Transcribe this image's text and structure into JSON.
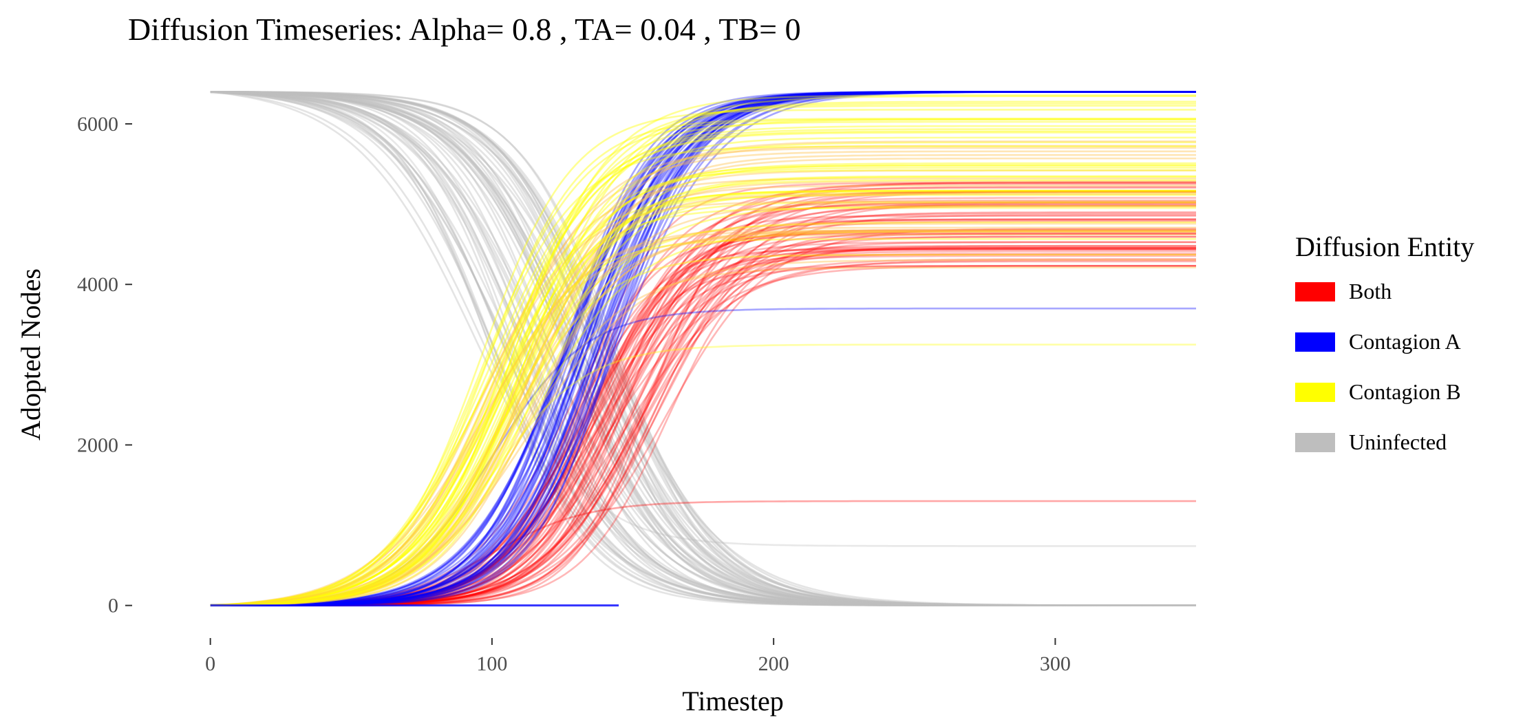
{
  "chart_data": {
    "type": "line",
    "title": "Diffusion Timeseries: Alpha= 0.8 , TA= 0.04 , TB= 0",
    "xlabel": "Timestep",
    "ylabel": "Adopted Nodes",
    "xlim": [
      -18,
      350
    ],
    "ylim": [
      -320,
      6600
    ],
    "x_ticks": [
      0,
      100,
      200,
      300
    ],
    "y_ticks": [
      0,
      2000,
      4000,
      6000
    ],
    "total_nodes": 6400,
    "x_max": 350,
    "grid": false,
    "legend": {
      "title": "Diffusion Entity",
      "position": "right",
      "entries": [
        {
          "label": "Both",
          "color": "#ff0000"
        },
        {
          "label": "Contagion A",
          "color": "#0000ff"
        },
        {
          "label": "Contagion B",
          "color": "#ffff00"
        },
        {
          "label": "Uninfected",
          "color": "#bebebe"
        }
      ]
    },
    "series": [
      {
        "name": "Uninfected",
        "color": "#bebebe",
        "runs": 60,
        "kind": "decay",
        "start": 6400,
        "midpoint_range": [
          95,
          145
        ],
        "steepness_range": [
          0.045,
          0.06
        ],
        "final_range": [
          0,
          0
        ],
        "opacity": 0.42,
        "outlier_levels": [
          740
        ]
      },
      {
        "name": "Both",
        "color": "#ff0000",
        "runs": 60,
        "kind": "rise",
        "start": 0,
        "midpoint_range": [
          128,
          162
        ],
        "steepness_range": [
          0.05,
          0.075
        ],
        "final_range": [
          4200,
          5300
        ],
        "opacity": 0.28,
        "outlier_levels": [
          1300
        ]
      },
      {
        "name": "Contagion A",
        "color": "#0000ff",
        "runs": 40,
        "kind": "rise",
        "start": 0,
        "midpoint_range": [
          125,
          145
        ],
        "steepness_range": [
          0.055,
          0.07
        ],
        "final_range": [
          6400,
          6400
        ],
        "opacity": 0.35,
        "outlier_levels": [
          3700
        ]
      },
      {
        "name": "Contagion B",
        "color": "#ffff00",
        "runs": 60,
        "kind": "rise",
        "start": 0,
        "midpoint_range": [
          95,
          115
        ],
        "steepness_range": [
          0.05,
          0.062
        ],
        "final_range": [
          4200,
          6400
        ],
        "opacity": 0.42,
        "outlier_levels": [
          3250
        ]
      }
    ],
    "overlap_color": "#ffc24d"
  }
}
